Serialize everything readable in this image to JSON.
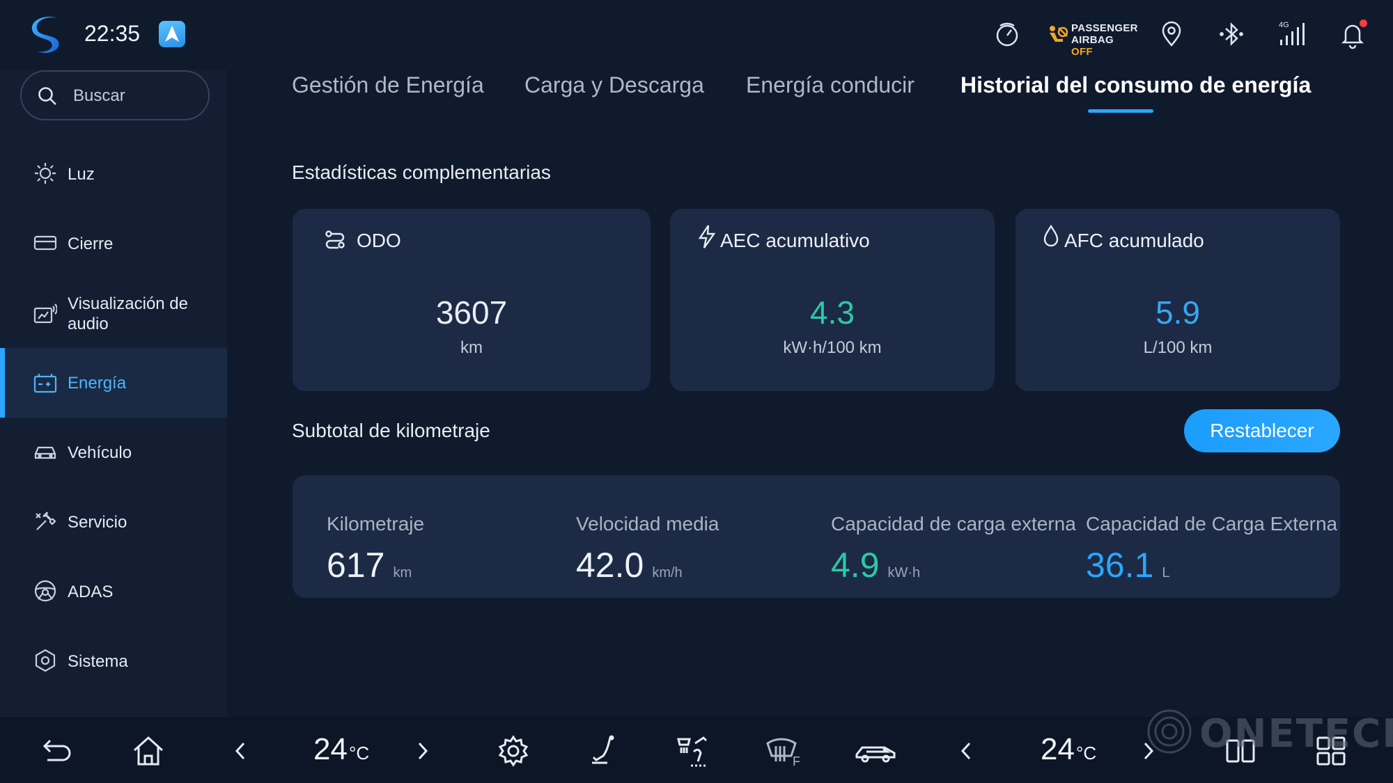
{
  "status_bar": {
    "time": "22:35",
    "airbag_line1": "PASSENGER",
    "airbag_line2": "AIRBAG",
    "airbag_off": "OFF",
    "signal_label": "4G",
    "icons": [
      "app-logo-icon",
      "navigation-app-icon",
      "speed-limit-icon",
      "airbag-icon",
      "location-pin-icon",
      "bluetooth-icon",
      "signal-icon",
      "bell-icon"
    ]
  },
  "search": {
    "placeholder": "Buscar"
  },
  "sidebar": {
    "items": [
      {
        "label": "Luz",
        "icon": "sun-icon"
      },
      {
        "label": "Cierre",
        "icon": "lock-icon"
      },
      {
        "label": "Visualización de audio",
        "icon": "display-audio-icon"
      },
      {
        "label": "Energía",
        "icon": "battery-icon",
        "active": true
      },
      {
        "label": "Vehículo",
        "icon": "car-icon"
      },
      {
        "label": "Servicio",
        "icon": "service-icon"
      },
      {
        "label": "ADAS",
        "icon": "steering-wheel-icon"
      },
      {
        "label": "Sistema",
        "icon": "hexagon-gear-icon"
      }
    ]
  },
  "tabs": [
    {
      "label": "Gestión de Energía"
    },
    {
      "label": "Carga y Descarga"
    },
    {
      "label": "Energía conducir"
    },
    {
      "label": "Historial del consumo de energía",
      "active": true
    }
  ],
  "stats": {
    "title": "Estadísticas complementarias",
    "cards": [
      {
        "label": "ODO",
        "value": "3607",
        "unit": "km",
        "color": "#e8edf3"
      },
      {
        "label": "AEC acumulativo",
        "value": "4.3",
        "unit": "kW·h/100 km",
        "color": "#2cc9a6"
      },
      {
        "label": "AFC acumulado",
        "value": "5.9",
        "unit": "L/100 km",
        "color": "#3aa6f0"
      }
    ]
  },
  "subtotal": {
    "title": "Subtotal de kilometraje",
    "reset_label": "Restablecer",
    "items": [
      {
        "label": "Kilometraje",
        "value": "617",
        "unit": "km",
        "color": "#eef2f7"
      },
      {
        "label": "Velocidad media",
        "value": "42.0",
        "unit": "km/h",
        "color": "#eef2f7"
      },
      {
        "label": "Capacidad de carga externa",
        "value": "4.9",
        "unit": "kW·h",
        "color": "#2cc9a6"
      },
      {
        "label": "Capacidad de Carga Externa",
        "value": "36.1",
        "unit": "L",
        "color": "#2aa7ff"
      }
    ]
  },
  "dock": {
    "left_temp": "24",
    "right_temp": "24",
    "temp_unit": "°C",
    "defrost_label": "F"
  },
  "watermark": "ONETECH",
  "colors": {
    "accent": "#2aa7ff",
    "green": "#2cc9a6",
    "airbag_off": "#f5a623",
    "notification": "#ff3b3b"
  }
}
